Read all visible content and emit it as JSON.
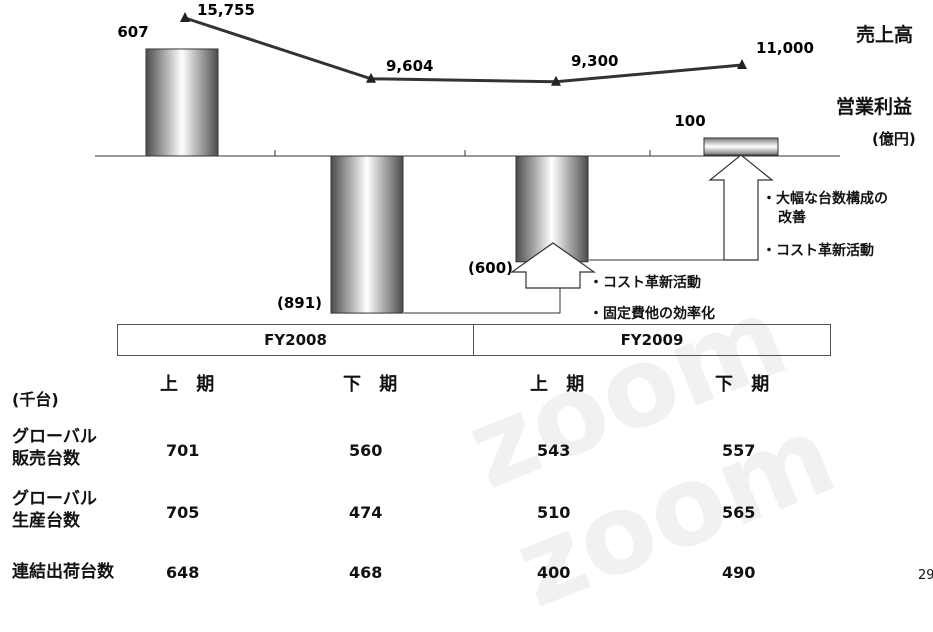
{
  "chart_data": {
    "type": "bar",
    "categories": [
      "上 期",
      "下 期",
      "上 期",
      "下 期"
    ],
    "fiscal_years": [
      "FY2008",
      "FY2009"
    ],
    "series": [
      {
        "name": "営業利益",
        "values": [
          607,
          -891,
          -600,
          100
        ],
        "labels": [
          "607",
          "(891)",
          "(600)",
          "100"
        ]
      },
      {
        "name": "売上高",
        "values": [
          15755,
          9604,
          9300,
          11000
        ],
        "labels": [
          "15,755",
          "9,604",
          "9,300",
          "11,000"
        ]
      }
    ],
    "unit": "(億円)",
    "annotations": {
      "first": [
        "・コスト革新活動",
        "・固定費他の効率化"
      ],
      "second": [
        "・大幅な台数構成の",
        "改善",
        "・コスト革新活動"
      ]
    }
  },
  "table": {
    "unit": "(千台)",
    "rows": [
      {
        "label": [
          "グローバル",
          "販売台数"
        ],
        "values": [
          "701",
          "560",
          "543",
          "557"
        ]
      },
      {
        "label": [
          "グローバル",
          "生産台数"
        ],
        "values": [
          "705",
          "474",
          "510",
          "565"
        ]
      },
      {
        "label": [
          "連結出荷台数"
        ],
        "values": [
          "648",
          "468",
          "400",
          "490"
        ]
      }
    ]
  },
  "watermark": "zoom zoom",
  "page_number": "29",
  "colors": {
    "bar_mid": "#ffffff",
    "bar_edge": "#555555",
    "line": "#333333"
  }
}
